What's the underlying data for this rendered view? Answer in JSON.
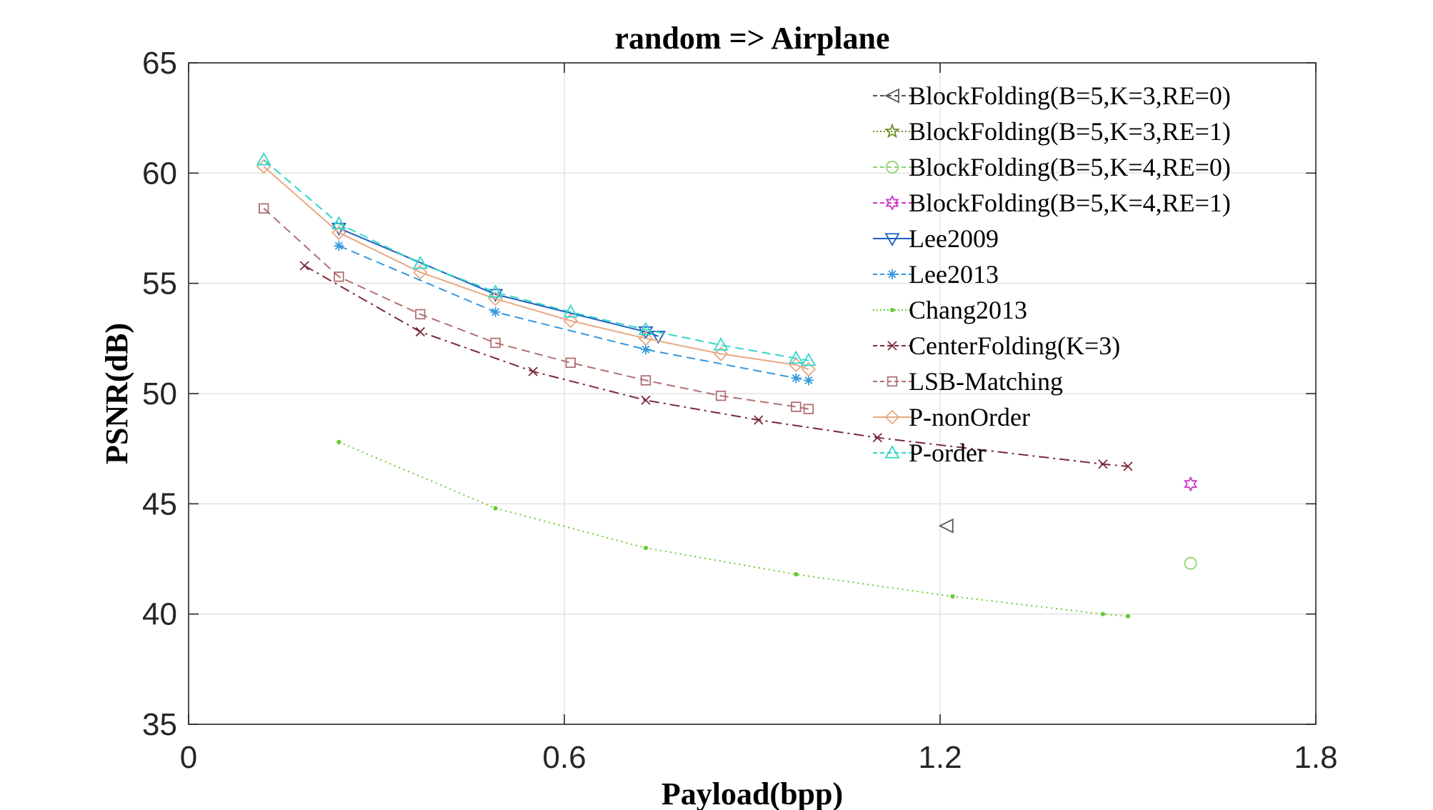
{
  "chart_data": {
    "type": "line",
    "title": "random => Airplane",
    "xlabel": "Payload(bpp)",
    "ylabel": "PSNR(dB)",
    "xlim": [
      0,
      1.8
    ],
    "ylim": [
      35,
      65
    ],
    "xticks": [
      0,
      0.6,
      1.2,
      1.8
    ],
    "xtick_labels": [
      "0",
      "0.6",
      "1.2",
      "1.8"
    ],
    "yticks": [
      35,
      40,
      45,
      50,
      55,
      60,
      65
    ],
    "ytick_labels": [
      "35",
      "40",
      "45",
      "50",
      "55",
      "60",
      "65"
    ],
    "grid": true,
    "legend_position": "top-right",
    "series": [
      {
        "name": "BlockFolding(B=5,K=3,RE=0)",
        "color": "#555555",
        "marker": "triangle-left",
        "dash": "dashed",
        "points": [
          [
            1.21,
            44.0
          ]
        ]
      },
      {
        "name": "BlockFolding(B=5,K=3,RE=1)",
        "color": "#6b8e23",
        "marker": "pentagram",
        "dash": "dotted",
        "points": []
      },
      {
        "name": "BlockFolding(B=5,K=4,RE=0)",
        "color": "#8fd175",
        "marker": "circle",
        "dash": "dashed",
        "points": [
          [
            1.6,
            42.3
          ]
        ]
      },
      {
        "name": "BlockFolding(B=5,K=4,RE=1)",
        "color": "#cc33cc",
        "marker": "hexagram",
        "dash": "dashed",
        "points": [
          [
            1.6,
            45.9
          ]
        ]
      },
      {
        "name": "Lee2009",
        "color": "#1f5fbf",
        "marker": "triangle-down",
        "dash": "solid",
        "points": [
          [
            0.24,
            57.5
          ],
          [
            0.49,
            54.5
          ],
          [
            0.73,
            52.8
          ],
          [
            0.75,
            52.6
          ]
        ]
      },
      {
        "name": "Lee2013",
        "color": "#3399dd",
        "marker": "asterisk",
        "dash": "dashed",
        "points": [
          [
            0.24,
            56.7
          ],
          [
            0.49,
            53.7
          ],
          [
            0.73,
            52.0
          ],
          [
            0.97,
            50.7
          ],
          [
            0.99,
            50.6
          ]
        ]
      },
      {
        "name": "Chang2013",
        "color": "#66cc33",
        "marker": "point",
        "dash": "dotted",
        "points": [
          [
            0.24,
            47.8
          ],
          [
            0.49,
            44.8
          ],
          [
            0.73,
            43.0
          ],
          [
            0.97,
            41.8
          ],
          [
            1.22,
            40.8
          ],
          [
            1.46,
            40.0
          ],
          [
            1.5,
            39.9
          ]
        ]
      },
      {
        "name": "CenterFolding(K=3)",
        "color": "#7a2a3a",
        "marker": "x",
        "dash": "dashdot",
        "points": [
          [
            0.185,
            55.8
          ],
          [
            0.37,
            52.8
          ],
          [
            0.55,
            51.0
          ],
          [
            0.73,
            49.7
          ],
          [
            0.91,
            48.8
          ],
          [
            1.1,
            48.0
          ],
          [
            1.46,
            46.8
          ],
          [
            1.5,
            46.7
          ]
        ]
      },
      {
        "name": "LSB-Matching",
        "color": "#b07070",
        "marker": "square",
        "dash": "dashed",
        "points": [
          [
            0.12,
            58.4
          ],
          [
            0.24,
            55.3
          ],
          [
            0.37,
            53.6
          ],
          [
            0.49,
            52.3
          ],
          [
            0.61,
            51.4
          ],
          [
            0.73,
            50.6
          ],
          [
            0.85,
            49.9
          ],
          [
            0.97,
            49.4
          ],
          [
            0.99,
            49.3
          ]
        ]
      },
      {
        "name": "P-nonOrder",
        "color": "#e8a882",
        "marker": "diamond",
        "dash": "solid",
        "points": [
          [
            0.12,
            60.3
          ],
          [
            0.24,
            57.3
          ],
          [
            0.37,
            55.5
          ],
          [
            0.49,
            54.3
          ],
          [
            0.61,
            53.3
          ],
          [
            0.73,
            52.5
          ],
          [
            0.85,
            51.8
          ],
          [
            0.97,
            51.3
          ],
          [
            0.99,
            51.1
          ]
        ]
      },
      {
        "name": "P-order",
        "color": "#33d6c8",
        "marker": "triangle-up",
        "dash": "dashed",
        "points": [
          [
            0.12,
            60.6
          ],
          [
            0.24,
            57.7
          ],
          [
            0.37,
            55.9
          ],
          [
            0.49,
            54.6
          ],
          [
            0.61,
            53.7
          ],
          [
            0.73,
            52.9
          ],
          [
            0.85,
            52.2
          ],
          [
            0.97,
            51.6
          ],
          [
            0.99,
            51.5
          ]
        ]
      }
    ]
  }
}
